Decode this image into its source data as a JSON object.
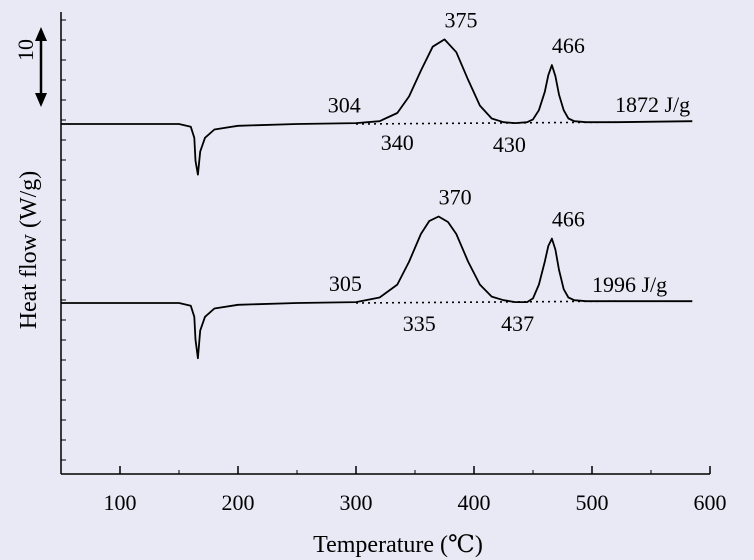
{
  "chart_data": {
    "type": "line",
    "title": "",
    "xlabel": "Temperature (℃)",
    "ylabel": "Heat flow (W/g)",
    "xlim": [
      50,
      600
    ],
    "x_ticks": [
      100,
      200,
      300,
      400,
      500,
      600
    ],
    "y_tick_labels_shown": false,
    "grid": false,
    "legend": "none",
    "scale_bar": {
      "label": "10",
      "value": 10,
      "unit": "W/g"
    },
    "series": [
      {
        "x": [
          50,
          150,
          160,
          163,
          164,
          166,
          168,
          172,
          180,
          200,
          250,
          300,
          320,
          335,
          345,
          355,
          365,
          375,
          385,
          395,
          405,
          415,
          425,
          435,
          445,
          450,
          455,
          460,
          463,
          466,
          469,
          472,
          476,
          480,
          485,
          495,
          520,
          585
        ],
        "y": [
          0,
          0,
          -0.3,
          -1.5,
          -4.0,
          -5.5,
          -3.0,
          -1.5,
          -0.6,
          -0.2,
          0,
          0.1,
          0.3,
          1.2,
          3.0,
          5.8,
          8.4,
          9.2,
          7.8,
          4.8,
          2.0,
          0.6,
          0.2,
          0.1,
          0.2,
          0.5,
          1.5,
          3.5,
          5.3,
          6.4,
          5.2,
          3.2,
          1.5,
          0.6,
          0.3,
          0.2,
          0.2,
          0.3
        ],
        "annotations": [
          {
            "text": "304",
            "x": 304
          },
          {
            "text": "340",
            "x": 340
          },
          {
            "text": "375",
            "x": 375
          },
          {
            "text": "430",
            "x": 430
          },
          {
            "text": "466",
            "x": 466
          },
          {
            "text": "1872 J/g"
          }
        ]
      },
      {
        "x": [
          50,
          150,
          160,
          163,
          164,
          166,
          168,
          172,
          180,
          200,
          250,
          300,
          320,
          335,
          345,
          355,
          362,
          370,
          378,
          385,
          395,
          405,
          415,
          425,
          435,
          445,
          450,
          455,
          460,
          463,
          466,
          469,
          472,
          476,
          480,
          485,
          495,
          520,
          585
        ],
        "y": [
          0,
          0,
          -0.3,
          -1.5,
          -4.0,
          -6.0,
          -3.0,
          -1.5,
          -0.6,
          -0.2,
          0,
          0.1,
          0.6,
          2.0,
          4.5,
          7.5,
          8.9,
          9.4,
          8.8,
          7.5,
          4.5,
          2.0,
          0.7,
          0.3,
          0.1,
          0.1,
          0.5,
          2.0,
          4.5,
          6.2,
          7.0,
          5.8,
          3.6,
          1.5,
          0.6,
          0.3,
          0.2,
          0.2,
          0.2
        ],
        "annotations": [
          {
            "text": "305",
            "x": 305
          },
          {
            "text": "335",
            "x": 335
          },
          {
            "text": "370",
            "x": 370
          },
          {
            "text": "437",
            "x": 437
          },
          {
            "text": "466",
            "x": 466
          },
          {
            "text": "1996 J/g"
          }
        ]
      }
    ]
  }
}
